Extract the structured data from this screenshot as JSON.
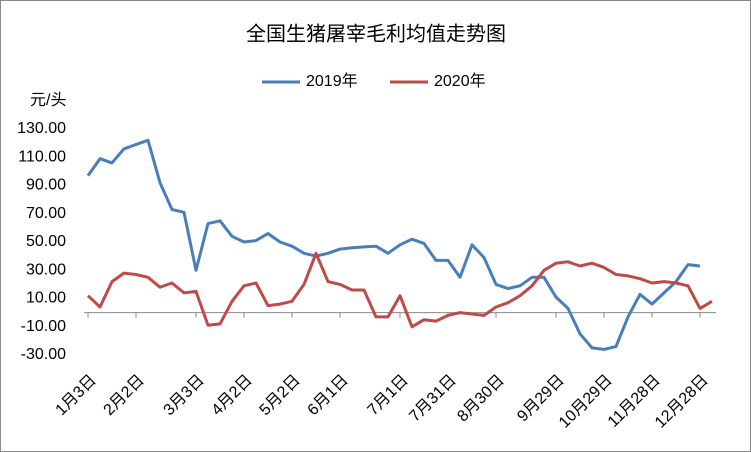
{
  "chart_data": {
    "type": "line",
    "title": "全国生猪屠宰毛利均值走势图",
    "y_label": "元/头",
    "categories": [
      "1月3日",
      null,
      null,
      null,
      "2月2日",
      null,
      null,
      null,
      null,
      "3月3日",
      null,
      null,
      null,
      "4月2日",
      null,
      null,
      null,
      "5月2日",
      null,
      null,
      null,
      "6月1日",
      null,
      null,
      null,
      null,
      "7月1日",
      null,
      null,
      null,
      "7月31日",
      null,
      null,
      null,
      "8月30日",
      null,
      null,
      null,
      null,
      "9月29日",
      null,
      null,
      null,
      "10月29日",
      null,
      null,
      null,
      "11月28日",
      null,
      null,
      null,
      "12月28日",
      null
    ],
    "series": [
      {
        "name": "2019年",
        "color": "#4a7ebb",
        "values": [
          97,
          109,
          106,
          116,
          119,
          122,
          92,
          73,
          71,
          30,
          63,
          65,
          54,
          50,
          51,
          56,
          50,
          47,
          42,
          40,
          42,
          45,
          46,
          46.5,
          47,
          42,
          48,
          52,
          49,
          37,
          37,
          25,
          48,
          39,
          20,
          17,
          19,
          25,
          25,
          11,
          3,
          -15,
          -25,
          -26,
          -24,
          -3,
          13,
          6,
          14,
          22,
          34,
          33,
          null
        ]
      },
      {
        "name": "2020年",
        "color": "#be4b48",
        "values": [
          12,
          4,
          22,
          28,
          27,
          25,
          18,
          21,
          14,
          15,
          -9,
          -8,
          8,
          19,
          21,
          5,
          6,
          8,
          20,
          42,
          22,
          20,
          16,
          16,
          -3,
          -3,
          12,
          -10,
          -5,
          -6,
          -2,
          0,
          -1,
          -2,
          4,
          7,
          12,
          19,
          30,
          35,
          36,
          33,
          35,
          32,
          27,
          26,
          24,
          21,
          22,
          21,
          19,
          3,
          8
        ]
      }
    ],
    "ylim": [
      -30,
      130
    ],
    "yticks": [
      {
        "value": -30,
        "label": "-30.00"
      },
      {
        "value": -10,
        "label": "-10.00"
      },
      {
        "value": 10,
        "label": "10.00"
      },
      {
        "value": 30,
        "label": "30.00"
      },
      {
        "value": 50,
        "label": "50.00"
      },
      {
        "value": 70,
        "label": "70.00"
      },
      {
        "value": 90,
        "label": "90.00"
      },
      {
        "value": 110,
        "label": "110.00"
      },
      {
        "value": 130,
        "label": "130.00"
      }
    ],
    "grid": false,
    "legend": "top"
  }
}
